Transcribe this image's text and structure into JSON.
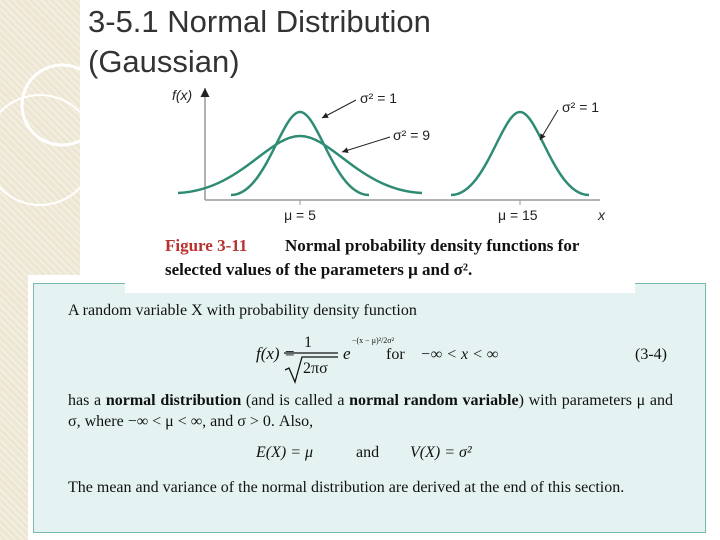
{
  "title": {
    "line1": "3-5.1 Normal Distribution",
    "line2": "(Gaussian)"
  },
  "figure": {
    "y_axis_label": "f(x)",
    "x_axis_label": "x",
    "annotations": [
      "σ² = 1",
      "σ² = 9",
      "σ² = 1"
    ],
    "tick_labels": [
      "μ = 5",
      "μ = 15"
    ],
    "caption": {
      "number": "Figure 3-11",
      "lines": [
        "Normal probability density functions for",
        "selected values of the parameters μ and σ²."
      ]
    }
  },
  "definition": {
    "intro": "A random variable X with probability density function",
    "formula": {
      "lhs": "f(x) =",
      "numerator": "1",
      "denominator": "2πσ",
      "base": "e",
      "exponent": "−(x − μ)²/2σ²",
      "for": "for",
      "range": "−∞ < x < ∞",
      "number": "(3-4)"
    },
    "paragraph": [
      "has a ",
      "normal distribution",
      " (and is called a ",
      "normal random variable",
      ") with parameters μ and σ, where −∞ < μ < ∞, and σ > 0. Also,"
    ],
    "moments": {
      "mean": "E(X) = μ",
      "and": "and",
      "variance": "V(X) = σ²"
    },
    "closing": "The mean and variance of the normal distribution are derived at the end of this section."
  }
}
